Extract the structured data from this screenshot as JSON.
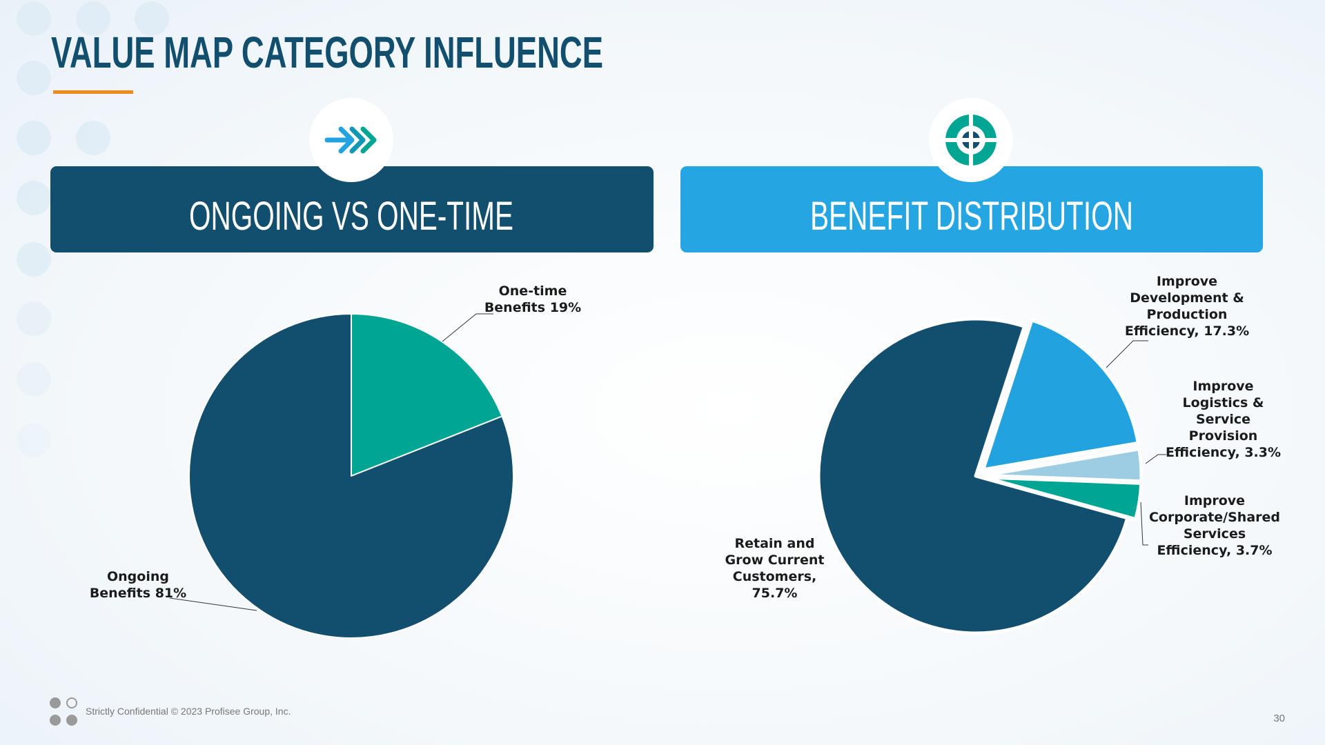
{
  "title": "VALUE MAP CATEGORY INFLUENCE",
  "footer": {
    "text": "Strictly Confidential  © 2023 Profisee Group, Inc.",
    "page": "30"
  },
  "chart_data": [
    {
      "type": "pie",
      "title": "ONGOING VS ONE-TIME",
      "categories": [
        "One-time Benefits",
        "Ongoing Benefits"
      ],
      "values": [
        19,
        81
      ],
      "value_labels": [
        "19%",
        "81%"
      ],
      "colors": [
        "#00a693",
        "#124f6e"
      ]
    },
    {
      "type": "pie",
      "title": "BENEFIT DISTRIBUTION",
      "categories": [
        "Improve Development & Production Efficiency,",
        "Improve Logistics & Service Provision Efficiency,",
        "Improve Corporate/Shared Services Efficiency,",
        "Retain and Grow Current Customers,"
      ],
      "values": [
        17.3,
        3.3,
        3.7,
        75.7
      ],
      "value_labels": [
        "17.3%",
        "3.3%",
        "3.7%",
        "75.7%"
      ],
      "colors": [
        "#22a3e0",
        "#9ccde2",
        "#00a693",
        "#124f6e"
      ]
    }
  ]
}
